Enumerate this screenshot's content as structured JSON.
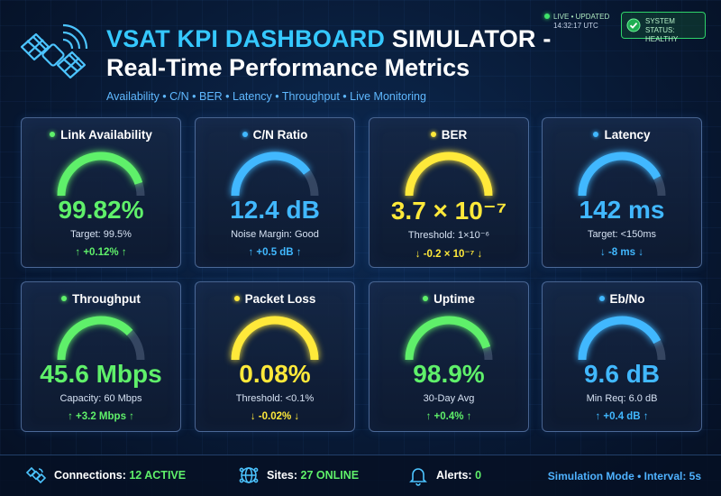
{
  "header": {
    "title_highlight": "VSAT KPI DASHBOARD",
    "title_rest": " SIMULATOR -",
    "title_line2": "Real-Time Performance Metrics",
    "subtitle": "Availability • C/N • BER • Latency • Throughput • Live Monitoring",
    "live_label": "LIVE • UPDATED",
    "live_time": "14:32:17 UTC",
    "status_label": "SYSTEM STATUS:",
    "status_value": "HEALTHY",
    "logo_icon": "satellite-icon",
    "status_icon": "check-circle-icon"
  },
  "colors": {
    "green": "#5ff06a",
    "blue": "#41b8ff",
    "yellow": "#ffe93a",
    "background": "#081a36"
  },
  "cards": [
    {
      "title": "Link Availability",
      "value": "99.82%",
      "sub": "Target: 99.5%",
      "delta": "↑ +0.12% ↑",
      "color": "green",
      "level": 0.9
    },
    {
      "title": "C/N Ratio",
      "value": "12.4 dB",
      "sub": "Noise Margin: Good",
      "delta": "↑ +0.5 dB ↑",
      "color": "blue",
      "level": 0.8
    },
    {
      "title": "BER",
      "value": "3.7 × 10⁻⁷",
      "sub": "Threshold: 1×10⁻⁶",
      "delta": "↓ -0.2 × 10⁻⁷ ↓",
      "color": "yellow",
      "level": 1.0
    },
    {
      "title": "Latency",
      "value": "142 ms",
      "sub": "Target: <150ms",
      "delta": "↓ -8 ms ↓",
      "color": "blue",
      "level": 0.85
    },
    {
      "title": "Throughput",
      "value": "45.6 Mbps",
      "sub": "Capacity: 60 Mbps",
      "delta": "↑ +3.2 Mbps ↑",
      "color": "green",
      "level": 0.76
    },
    {
      "title": "Packet Loss",
      "value": "0.08%",
      "sub": "Threshold: <0.1%",
      "delta": "↓ -0.02% ↓",
      "color": "yellow",
      "level": 1.0
    },
    {
      "title": "Uptime",
      "value": "98.9%",
      "sub": "30-Day Avg",
      "delta": "↑ +0.4% ↑",
      "color": "green",
      "level": 0.9
    },
    {
      "title": "Eb/No",
      "value": "9.6 dB",
      "sub": "Min Req: 6.0 dB",
      "delta": "↑ +0.4 dB ↑",
      "color": "blue",
      "level": 0.85
    }
  ],
  "footer": {
    "connections_label": "Connections:",
    "connections_value": "12 ACTIVE",
    "sites_label": "Sites:",
    "sites_value": "27 ONLINE",
    "alerts_label": "Alerts:",
    "alerts_value": "0",
    "mode": "Simulation Mode • Interval: 5s",
    "connections_icon": "satellite-icon",
    "sites_icon": "globe-icon",
    "alerts_icon": "bell-icon"
  }
}
